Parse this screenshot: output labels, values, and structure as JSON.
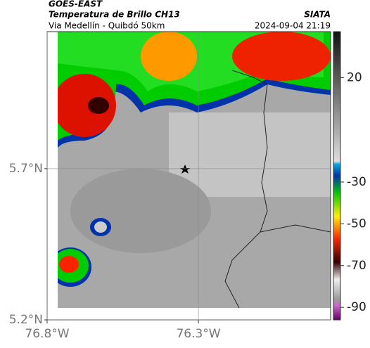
{
  "header": {
    "satellite": "GOES-EAST",
    "product": "Temperatura de Brillo CH13",
    "region": "Via Medellín - Quibdó 50km",
    "source": "SIATA",
    "datetime": "2024-09-04 21:19"
  },
  "map": {
    "xlim": [
      -76.8,
      -75.863
    ],
    "ylim": [
      5.2,
      6.153
    ],
    "xticks": [
      {
        "value": -76.8,
        "label": "76.8°W"
      },
      {
        "value": -76.3,
        "label": "76.3°W"
      }
    ],
    "yticks": [
      {
        "value": 5.2,
        "label": "5.2°N"
      },
      {
        "value": 5.7,
        "label": "5.7°N"
      }
    ],
    "grid": true
  },
  "colorbar": {
    "lim": [
      42,
      -96
    ],
    "ticks": [
      20,
      -30,
      -50,
      -70,
      -90
    ]
  }
}
